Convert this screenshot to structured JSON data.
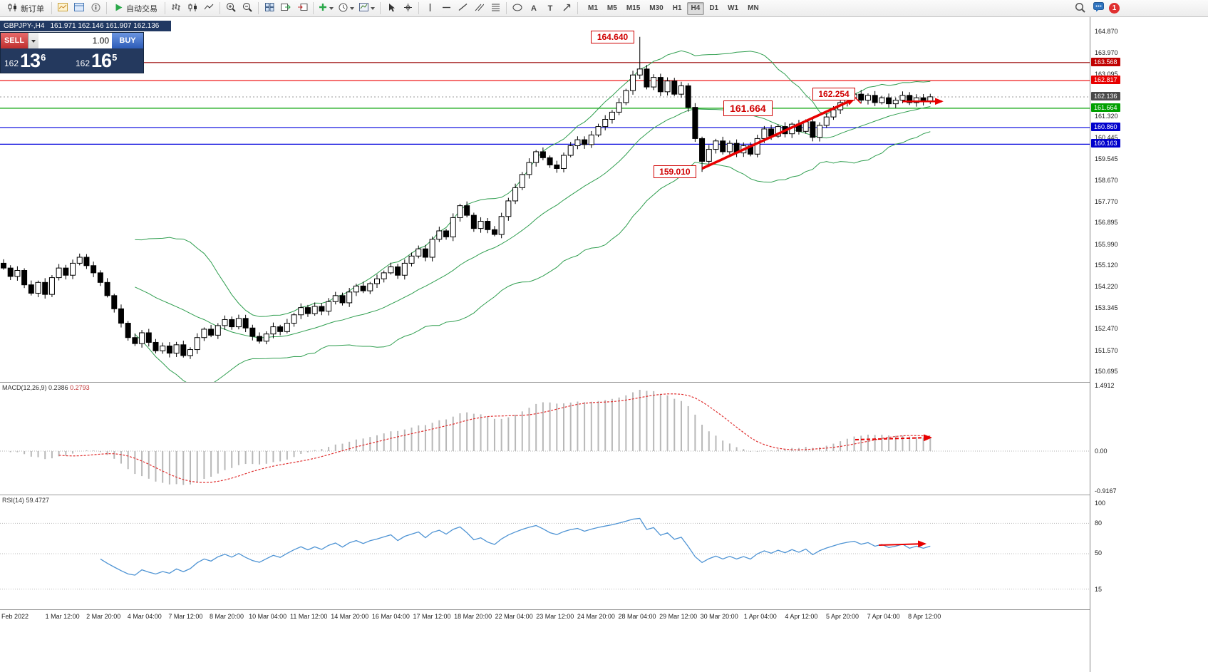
{
  "toolbar": {
    "new_order_label": "新订单",
    "auto_trading_label": "自动交易",
    "text_tool_glyph": "A",
    "label_tool_glyph": "T",
    "timeframes": [
      "M1",
      "M5",
      "M15",
      "M30",
      "H1",
      "H4",
      "D1",
      "W1",
      "MN"
    ],
    "active_timeframe": "H4",
    "notification_count": "1"
  },
  "chart_header": {
    "symbol_period": "GBPJPY-,H4",
    "ohlc": "161.971 162.146 161.907 162.136"
  },
  "trade_panel": {
    "sell_label": "SELL",
    "buy_label": "BUY",
    "volume": "1.00",
    "price_prefix": "162",
    "sell_big": "13",
    "sell_sup": "6",
    "buy_big": "16",
    "buy_sup": "5",
    "sell_color": "#c43939",
    "buy_color": "#3a6fc9"
  },
  "price_axis": {
    "ticks": [
      "164.870",
      "163.970",
      "163.095",
      "161.320",
      "160.445",
      "159.545",
      "158.670",
      "157.770",
      "156.895",
      "155.990",
      "155.120",
      "154.220",
      "153.345",
      "152.470",
      "151.570",
      "150.695"
    ],
    "tags": [
      {
        "label": "163.568",
        "price": 163.568,
        "bg": "#c00000"
      },
      {
        "label": "162.817",
        "price": 162.817,
        "bg": "#e80000"
      },
      {
        "label": "162.136",
        "price": 162.136,
        "bg": "#4a4a4a"
      },
      {
        "label": "161.664",
        "price": 161.664,
        "bg": "#00a000"
      },
      {
        "label": "160.860",
        "price": 160.86,
        "bg": "#0000cc"
      },
      {
        "label": "160.163",
        "price": 160.163,
        "bg": "#0000cc"
      }
    ]
  },
  "hlines": [
    {
      "price": 163.568,
      "color": "#990000",
      "width": 1.2
    },
    {
      "price": 162.817,
      "color": "#ee0000",
      "width": 1.2
    },
    {
      "price": 161.664,
      "color": "#00a000",
      "width": 1.2
    },
    {
      "price": 160.86,
      "color": "#0000dd",
      "width": 1.2
    },
    {
      "price": 160.163,
      "color": "#0000dd",
      "width": 1.2
    }
  ],
  "macd": {
    "label": "MACD(12,26,9)",
    "value_main": "0.2386",
    "value_signal": "0.2793",
    "axis": [
      "1.4912",
      "0.00",
      "-0.9167"
    ]
  },
  "rsi": {
    "label": "RSI(14)",
    "value": "59.4727",
    "levels": [
      "100",
      "80",
      "50",
      "15"
    ]
  },
  "time_axis": [
    "Feb 2022",
    "1 Mar 12:00",
    "2 Mar 20:00",
    "4 Mar 04:00",
    "7 Mar 12:00",
    "8 Mar 20:00",
    "10 Mar 04:00",
    "11 Mar 12:00",
    "14 Mar 20:00",
    "16 Mar 04:00",
    "17 Mar 12:00",
    "18 Mar 20:00",
    "22 Mar 04:00",
    "23 Mar 12:00",
    "24 Mar 20:00",
    "28 Mar 04:00",
    "29 Mar 12:00",
    "30 Mar 20:00",
    "1 Apr 04:00",
    "4 Apr 12:00",
    "5 Apr 20:00",
    "7 Apr 04:00",
    "8 Apr 12:00"
  ],
  "chart_data": {
    "type": "candlestick",
    "symbol": "GBPJPY-",
    "period": "H4",
    "current_price": 162.136,
    "ohlc_display": {
      "open": "161.971",
      "high": "162.146",
      "low": "161.907",
      "close": "162.136"
    },
    "price_range": [
      150.695,
      164.87
    ],
    "first_open": 155.2,
    "closes": [
      155.0,
      154.65,
      154.9,
      154.3,
      153.95,
      154.4,
      153.9,
      154.6,
      155.0,
      154.7,
      155.2,
      155.45,
      155.1,
      154.8,
      154.4,
      153.85,
      153.3,
      152.7,
      152.1,
      151.85,
      152.3,
      151.9,
      151.55,
      151.75,
      151.45,
      151.8,
      151.35,
      151.6,
      152.1,
      152.45,
      152.2,
      152.6,
      152.85,
      152.55,
      152.9,
      152.5,
      152.15,
      151.95,
      152.25,
      152.55,
      152.35,
      152.7,
      153.05,
      153.35,
      153.1,
      153.4,
      153.2,
      153.6,
      153.85,
      153.55,
      154.0,
      154.25,
      154.05,
      154.35,
      154.55,
      154.8,
      155.05,
      154.7,
      155.2,
      155.5,
      155.8,
      155.45,
      156.2,
      156.55,
      156.3,
      157.1,
      157.6,
      157.2,
      156.65,
      156.95,
      156.6,
      156.4,
      157.15,
      157.8,
      158.35,
      158.9,
      159.4,
      159.85,
      159.6,
      159.3,
      159.15,
      159.7,
      160.1,
      160.35,
      160.15,
      160.55,
      160.9,
      161.2,
      161.5,
      161.9,
      162.4,
      163.05,
      163.3,
      162.55,
      162.95,
      162.35,
      162.8,
      162.25,
      162.6,
      161.7,
      160.4,
      159.45,
      159.95,
      160.3,
      159.85,
      160.2,
      159.8,
      160.1,
      159.75,
      160.4,
      160.8,
      160.5,
      160.9,
      160.6,
      161.0,
      160.7,
      161.1,
      160.45,
      160.95,
      161.3,
      161.6,
      161.9,
      162.1,
      162.25,
      162.0,
      162.2,
      161.9,
      162.1,
      161.85,
      162.0,
      162.2,
      161.9,
      162.1,
      161.95,
      162.14
    ],
    "high_overrides": {
      "92": 164.64
    },
    "low_overrides": {
      "101": 159.01
    },
    "bollinger": {
      "period": 20,
      "deviation": 2
    },
    "callouts": [
      {
        "text": "164.640",
        "price": 164.64,
        "bar": 92
      },
      {
        "text": "159.010",
        "price": 159.01,
        "bar": 101
      },
      {
        "text": "161.664",
        "price": 161.664,
        "bar": 112,
        "big": true
      },
      {
        "text": "162.254",
        "price": 162.254,
        "bar": 124
      }
    ],
    "arrows": [
      {
        "type": "trend",
        "from_bar": 101,
        "from_price": 159.15,
        "to_bar": 123,
        "to_price": 162.05
      },
      {
        "type": "horizontal",
        "from_bar": 130,
        "to_bar": 135.7,
        "price": 161.95
      }
    ]
  }
}
